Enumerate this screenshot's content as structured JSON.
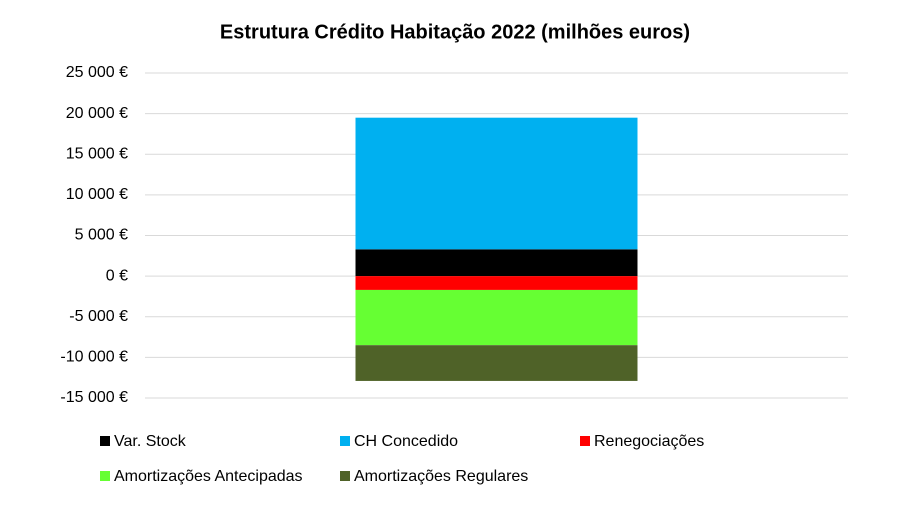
{
  "chart_data": {
    "type": "stacked_bar",
    "title": "Estrutura Crédito Habitação 2022 (milhões euros)",
    "categories": [
      null
    ],
    "series": [
      {
        "name": "Var. Stock",
        "color": "#000000",
        "values": [
          3300
        ]
      },
      {
        "name": "CH Concedido",
        "color": "#00b0f0",
        "values": [
          16200
        ]
      },
      {
        "name": "Renegociações",
        "color": "#ff0000",
        "values": [
          -1700
        ]
      },
      {
        "name": "Amortizações Antecipadas",
        "color": "#66ff33",
        "values": [
          -6800
        ]
      },
      {
        "name": "Amortizações Regulares",
        "color": "#4f6228",
        "values": [
          -4400
        ]
      }
    ],
    "ylim": [
      -15000,
      25000
    ],
    "yticks": [
      {
        "value": 25000,
        "label": "25 000 €"
      },
      {
        "value": 20000,
        "label": "20 000 €"
      },
      {
        "value": 15000,
        "label": "15 000 €"
      },
      {
        "value": 10000,
        "label": "10 000 €"
      },
      {
        "value": 5000,
        "label": "5 000 €"
      },
      {
        "value": 0,
        "label": "0 €"
      },
      {
        "value": -5000,
        "label": "-5 000 €"
      },
      {
        "value": -10000,
        "label": "-10 000 €"
      },
      {
        "value": -15000,
        "label": "-15 000 €"
      }
    ],
    "grid": true,
    "legend": "bottom"
  }
}
